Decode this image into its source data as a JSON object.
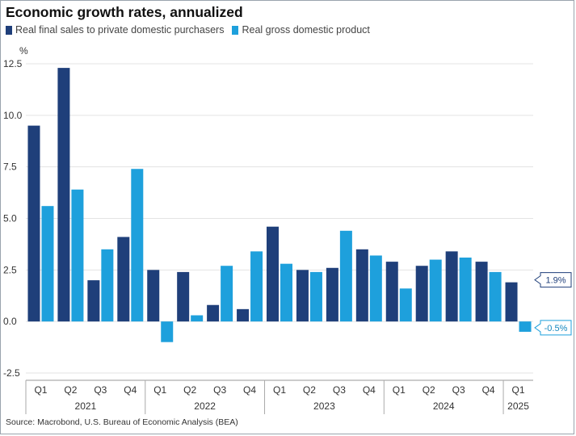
{
  "chart_data": {
    "type": "bar",
    "title": "Economic growth rates, annualized",
    "ylabel": "%",
    "ylim": [
      -2.5,
      12.5
    ],
    "yticks": [
      -2.5,
      0.0,
      2.5,
      5.0,
      7.5,
      10.0,
      12.5
    ],
    "ytick_labels": [
      "-2.5",
      "0.0",
      "2.5",
      "5.0",
      "7.5",
      "10.0",
      "12.5"
    ],
    "grid": true,
    "legend_position": "top-left",
    "categories": [
      "Q1",
      "Q2",
      "Q3",
      "Q4",
      "Q1",
      "Q2",
      "Q3",
      "Q4",
      "Q1",
      "Q2",
      "Q3",
      "Q4",
      "Q1",
      "Q2",
      "Q3",
      "Q4",
      "Q1"
    ],
    "years": [
      {
        "label": "2021",
        "start": 0,
        "end": 3
      },
      {
        "label": "2022",
        "start": 4,
        "end": 7
      },
      {
        "label": "2023",
        "start": 8,
        "end": 11
      },
      {
        "label": "2024",
        "start": 12,
        "end": 15
      },
      {
        "label": "2025",
        "start": 16,
        "end": 16
      }
    ],
    "series": [
      {
        "name": "Real final sales to private domestic purchasers",
        "color": "#1f3f7a",
        "values": [
          9.5,
          12.3,
          2.0,
          4.1,
          2.5,
          2.4,
          0.8,
          0.6,
          4.6,
          2.5,
          2.6,
          3.5,
          2.9,
          2.7,
          3.4,
          2.9,
          1.9
        ]
      },
      {
        "name": "Real gross domestic product",
        "color": "#1ea0dc",
        "values": [
          5.6,
          6.4,
          3.5,
          7.4,
          -1.0,
          0.3,
          2.7,
          3.4,
          2.8,
          2.4,
          4.4,
          3.2,
          1.6,
          3.0,
          3.1,
          2.4,
          -0.5
        ]
      }
    ],
    "annotations": [
      {
        "series": 0,
        "index": 16,
        "text": "1.9%"
      },
      {
        "series": 1,
        "index": 16,
        "text": "-0.5%"
      }
    ]
  },
  "source": "Source: Macrobond, U.S. Bureau of Economic Analysis (BEA)"
}
